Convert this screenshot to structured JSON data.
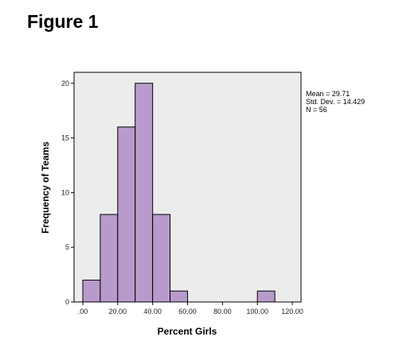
{
  "figure_title": "Figure 1",
  "chart_data": {
    "type": "bar",
    "title": "",
    "xlabel": "Percent Girls",
    "ylabel": "Frequency of Teams",
    "bin_width": 10,
    "x": [
      5,
      15,
      25,
      35,
      45,
      55,
      105
    ],
    "values": [
      2,
      8,
      16,
      20,
      8,
      1,
      1
    ],
    "xlim": [
      -5,
      125
    ],
    "ylim": [
      0,
      21
    ],
    "x_ticks": [
      0,
      20,
      40,
      60,
      80,
      100,
      120
    ],
    "x_tick_labels": [
      ".00",
      "20.00",
      "40.00",
      "60.00",
      "80.00",
      "100.00",
      "120.00"
    ],
    "y_ticks": [
      0,
      5,
      10,
      15,
      20
    ],
    "y_tick_labels": [
      "0",
      "5",
      "10",
      "15",
      "20"
    ],
    "bar_color": "#b89bcc",
    "plot_background": "#ececec",
    "grid": false,
    "stats": {
      "mean": "Mean = 29.71",
      "sd": "Std. Dev. = 14.429",
      "n": "N = 56"
    }
  }
}
